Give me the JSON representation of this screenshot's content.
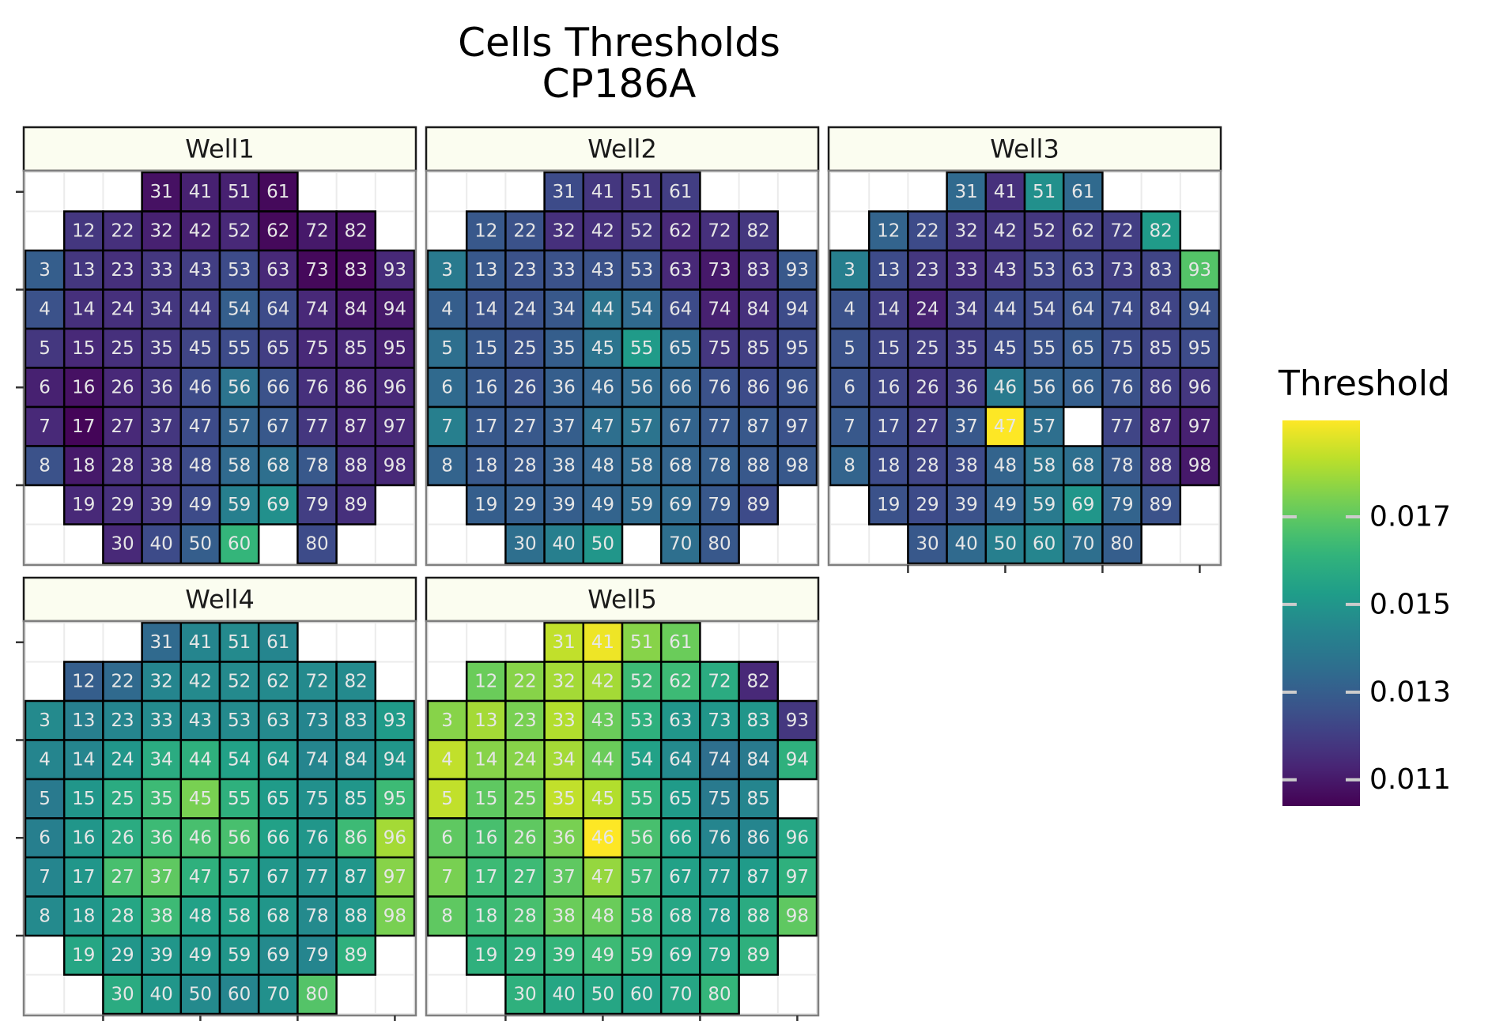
{
  "chart_data": {
    "type": "heatmap",
    "title": "Cells Thresholds",
    "subtitle": "CP186A",
    "colorscale": "viridis",
    "color_limits": [
      0.0104,
      0.0192
    ],
    "colors": {
      "panel_border": "#7f7f7f",
      "strip_fill": "#fbfdf0",
      "grid": "#ebebeb",
      "tile_border": "#000000"
    },
    "legend": {
      "title": "Threshold",
      "position": "right",
      "ticks": [
        0.011,
        0.013,
        0.015,
        0.017
      ],
      "tick_labels": [
        "0.011",
        "0.013",
        "0.015",
        "0.017"
      ]
    },
    "grid_columns": 10,
    "grid_rows": 10,
    "panels": [
      {
        "name": "Well1",
        "cells": {
          "31": 0.0108,
          "41": 0.0112,
          "51": 0.0112,
          "61": 0.0106,
          "12": 0.0118,
          "22": 0.0116,
          "32": 0.0112,
          "42": 0.0112,
          "52": 0.0114,
          "62": 0.0106,
          "72": 0.011,
          "82": 0.0108,
          "3": 0.013,
          "13": 0.0118,
          "23": 0.0116,
          "33": 0.0118,
          "43": 0.012,
          "53": 0.0124,
          "63": 0.0114,
          "73": 0.0106,
          "83": 0.0106,
          "93": 0.0114,
          "4": 0.0126,
          "14": 0.0116,
          "24": 0.0116,
          "34": 0.0118,
          "44": 0.012,
          "54": 0.013,
          "64": 0.0124,
          "74": 0.0114,
          "84": 0.011,
          "94": 0.011,
          "5": 0.0118,
          "15": 0.0114,
          "25": 0.0116,
          "35": 0.0118,
          "45": 0.0122,
          "55": 0.0124,
          "65": 0.012,
          "75": 0.0114,
          "85": 0.0114,
          "95": 0.0112,
          "6": 0.0112,
          "16": 0.0108,
          "26": 0.0114,
          "36": 0.0118,
          "46": 0.0124,
          "56": 0.0138,
          "66": 0.0126,
          "76": 0.0116,
          "86": 0.0114,
          "96": 0.0114,
          "7": 0.0114,
          "17": 0.0105,
          "27": 0.0114,
          "37": 0.0118,
          "47": 0.0124,
          "57": 0.0132,
          "67": 0.0128,
          "77": 0.0118,
          "87": 0.0114,
          "97": 0.0114,
          "8": 0.0126,
          "18": 0.011,
          "28": 0.0116,
          "38": 0.0118,
          "48": 0.0124,
          "58": 0.0134,
          "68": 0.0136,
          "78": 0.0128,
          "88": 0.0116,
          "98": 0.0114,
          "19": 0.0114,
          "29": 0.0116,
          "39": 0.0118,
          "49": 0.0124,
          "59": 0.0142,
          "69": 0.0148,
          "79": 0.012,
          "89": 0.0116,
          "30": 0.0114,
          "40": 0.0124,
          "50": 0.013,
          "60": 0.0162,
          "80": 0.0124
        }
      },
      {
        "name": "Well2",
        "cells": {
          "31": 0.0124,
          "41": 0.0118,
          "51": 0.0118,
          "61": 0.012,
          "12": 0.0128,
          "22": 0.0126,
          "32": 0.0116,
          "42": 0.0116,
          "52": 0.0118,
          "62": 0.0114,
          "72": 0.0116,
          "82": 0.0118,
          "3": 0.014,
          "13": 0.0128,
          "23": 0.0126,
          "33": 0.0126,
          "43": 0.0126,
          "53": 0.0126,
          "63": 0.0114,
          "73": 0.011,
          "83": 0.0116,
          "93": 0.0128,
          "4": 0.013,
          "14": 0.0126,
          "24": 0.0126,
          "34": 0.0128,
          "44": 0.0138,
          "54": 0.0134,
          "64": 0.0124,
          "74": 0.0112,
          "84": 0.0116,
          "94": 0.0124,
          "5": 0.0136,
          "15": 0.0128,
          "25": 0.0126,
          "35": 0.013,
          "45": 0.0138,
          "55": 0.0152,
          "65": 0.0134,
          "75": 0.0118,
          "85": 0.012,
          "95": 0.0124,
          "6": 0.0134,
          "16": 0.0128,
          "26": 0.0126,
          "36": 0.013,
          "46": 0.0132,
          "56": 0.0134,
          "66": 0.0132,
          "76": 0.0126,
          "86": 0.0124,
          "96": 0.0126,
          "7": 0.0142,
          "17": 0.0128,
          "27": 0.0128,
          "37": 0.013,
          "47": 0.0136,
          "57": 0.0138,
          "67": 0.0132,
          "77": 0.0128,
          "87": 0.0128,
          "97": 0.0126,
          "8": 0.0132,
          "18": 0.0128,
          "28": 0.0128,
          "38": 0.013,
          "48": 0.0132,
          "58": 0.0134,
          "68": 0.0132,
          "78": 0.013,
          "88": 0.0128,
          "98": 0.0128,
          "19": 0.013,
          "29": 0.013,
          "39": 0.013,
          "49": 0.0132,
          "59": 0.0134,
          "69": 0.0134,
          "79": 0.0128,
          "89": 0.0124,
          "30": 0.0136,
          "40": 0.0142,
          "50": 0.015,
          "70": 0.0136,
          "80": 0.0128
        }
      },
      {
        "name": "Well3",
        "cells": {
          "31": 0.0134,
          "41": 0.0116,
          "51": 0.0148,
          "61": 0.0134,
          "12": 0.0132,
          "22": 0.0124,
          "32": 0.0118,
          "42": 0.0118,
          "52": 0.0118,
          "62": 0.012,
          "72": 0.012,
          "82": 0.0152,
          "3": 0.0142,
          "13": 0.0124,
          "23": 0.0118,
          "33": 0.0116,
          "43": 0.0118,
          "53": 0.0122,
          "63": 0.0122,
          "73": 0.012,
          "83": 0.0122,
          "93": 0.0168,
          "4": 0.0126,
          "14": 0.012,
          "24": 0.0112,
          "34": 0.012,
          "44": 0.0124,
          "54": 0.0124,
          "64": 0.0126,
          "74": 0.0124,
          "84": 0.0122,
          "94": 0.0126,
          "5": 0.0126,
          "15": 0.0122,
          "25": 0.012,
          "35": 0.012,
          "45": 0.0124,
          "55": 0.0126,
          "65": 0.0128,
          "75": 0.0124,
          "85": 0.0122,
          "95": 0.0124,
          "6": 0.0126,
          "16": 0.0122,
          "26": 0.0118,
          "36": 0.012,
          "46": 0.014,
          "56": 0.0132,
          "66": 0.013,
          "76": 0.0126,
          "86": 0.012,
          "96": 0.0118,
          "7": 0.0128,
          "17": 0.0124,
          "27": 0.012,
          "37": 0.0128,
          "47": 0.0192,
          "57": 0.0136,
          "77": 0.0122,
          "87": 0.0114,
          "97": 0.0112,
          "8": 0.0132,
          "18": 0.0124,
          "28": 0.0122,
          "38": 0.0124,
          "48": 0.0132,
          "58": 0.0138,
          "68": 0.0136,
          "78": 0.0128,
          "88": 0.0118,
          "98": 0.011,
          "19": 0.0126,
          "29": 0.0124,
          "39": 0.0126,
          "49": 0.0132,
          "59": 0.014,
          "69": 0.015,
          "79": 0.0132,
          "89": 0.0126,
          "30": 0.0128,
          "40": 0.0134,
          "50": 0.0142,
          "60": 0.0144,
          "70": 0.0136,
          "80": 0.013
        }
      },
      {
        "name": "Well4",
        "cells": {
          "31": 0.0134,
          "41": 0.0144,
          "51": 0.0146,
          "61": 0.0144,
          "12": 0.013,
          "22": 0.0134,
          "32": 0.0144,
          "42": 0.0146,
          "52": 0.0146,
          "62": 0.0146,
          "72": 0.0146,
          "82": 0.0146,
          "3": 0.0146,
          "13": 0.0142,
          "23": 0.0144,
          "33": 0.0146,
          "43": 0.0146,
          "53": 0.0146,
          "63": 0.0146,
          "73": 0.0144,
          "83": 0.0146,
          "93": 0.0152,
          "4": 0.0144,
          "14": 0.0144,
          "24": 0.015,
          "34": 0.0158,
          "44": 0.016,
          "54": 0.0154,
          "64": 0.015,
          "74": 0.0144,
          "84": 0.0146,
          "94": 0.015,
          "5": 0.014,
          "15": 0.015,
          "25": 0.0158,
          "35": 0.0164,
          "45": 0.0174,
          "55": 0.016,
          "65": 0.0152,
          "75": 0.0148,
          "85": 0.015,
          "95": 0.0164,
          "6": 0.0142,
          "16": 0.015,
          "26": 0.0158,
          "36": 0.0164,
          "46": 0.0166,
          "56": 0.0166,
          "66": 0.0154,
          "76": 0.015,
          "86": 0.0164,
          "96": 0.018,
          "7": 0.0144,
          "17": 0.015,
          "27": 0.0166,
          "37": 0.017,
          "47": 0.016,
          "57": 0.0156,
          "67": 0.015,
          "77": 0.0148,
          "87": 0.015,
          "97": 0.0176,
          "8": 0.0146,
          "18": 0.015,
          "28": 0.0156,
          "38": 0.0164,
          "48": 0.0154,
          "58": 0.0154,
          "68": 0.015,
          "78": 0.0146,
          "88": 0.015,
          "98": 0.0174,
          "19": 0.0156,
          "29": 0.015,
          "39": 0.015,
          "49": 0.015,
          "59": 0.015,
          "69": 0.0146,
          "79": 0.0144,
          "89": 0.016,
          "30": 0.0158,
          "40": 0.015,
          "50": 0.0146,
          "60": 0.0144,
          "70": 0.0148,
          "80": 0.0168
        }
      },
      {
        "name": "Well5",
        "cells": {
          "31": 0.0184,
          "41": 0.019,
          "51": 0.0176,
          "61": 0.0172,
          "12": 0.0172,
          "22": 0.0176,
          "32": 0.018,
          "42": 0.018,
          "52": 0.0164,
          "62": 0.0164,
          "72": 0.0158,
          "82": 0.0114,
          "3": 0.0176,
          "13": 0.018,
          "23": 0.0174,
          "33": 0.0182,
          "43": 0.0172,
          "53": 0.016,
          "63": 0.015,
          "73": 0.015,
          "83": 0.015,
          "93": 0.0118,
          "4": 0.0184,
          "14": 0.0176,
          "24": 0.0176,
          "34": 0.018,
          "44": 0.0172,
          "54": 0.0154,
          "64": 0.0146,
          "74": 0.0136,
          "84": 0.014,
          "94": 0.016,
          "5": 0.0184,
          "15": 0.017,
          "25": 0.0172,
          "35": 0.0184,
          "45": 0.0182,
          "55": 0.0162,
          "65": 0.0152,
          "75": 0.014,
          "85": 0.0144,
          "6": 0.017,
          "16": 0.0166,
          "26": 0.017,
          "36": 0.0174,
          "46": 0.0192,
          "56": 0.0166,
          "66": 0.0154,
          "76": 0.0144,
          "86": 0.0144,
          "96": 0.0156,
          "7": 0.0174,
          "17": 0.0164,
          "27": 0.0164,
          "37": 0.017,
          "47": 0.0178,
          "57": 0.0164,
          "67": 0.0154,
          "77": 0.015,
          "87": 0.0152,
          "97": 0.016,
          "8": 0.017,
          "18": 0.0164,
          "28": 0.0166,
          "38": 0.0172,
          "48": 0.0172,
          "58": 0.0162,
          "68": 0.0156,
          "78": 0.0152,
          "88": 0.0158,
          "98": 0.017,
          "19": 0.016,
          "29": 0.016,
          "39": 0.0162,
          "49": 0.0164,
          "59": 0.016,
          "69": 0.0156,
          "79": 0.0156,
          "89": 0.016,
          "30": 0.016,
          "40": 0.0156,
          "50": 0.0156,
          "60": 0.0154,
          "70": 0.0156,
          "80": 0.0162
        }
      }
    ]
  }
}
